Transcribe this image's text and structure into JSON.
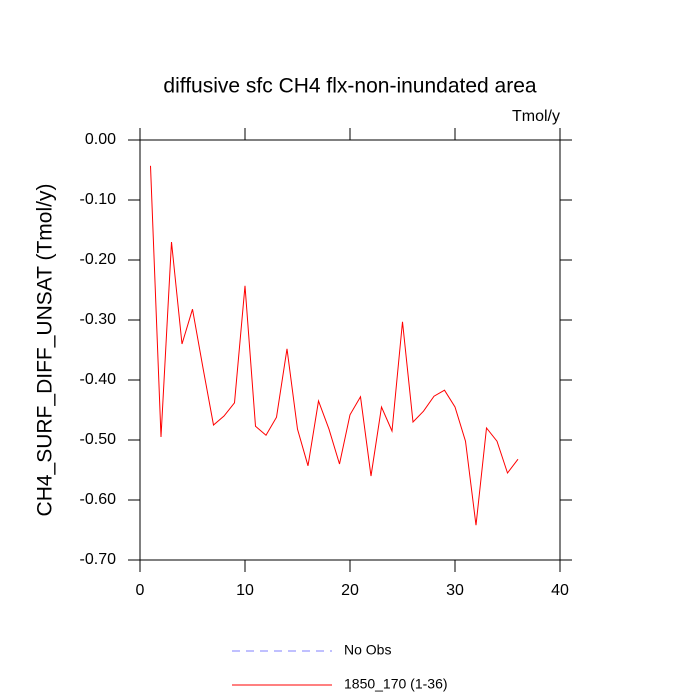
{
  "chart_data": {
    "type": "line",
    "title": "diffusive sfc CH4 flx-non-inundated area",
    "units": "Tmol/y",
    "y_label": "CH4_SURF_DIFF_UNSAT  (Tmol/y)",
    "x": [
      1,
      2,
      3,
      4,
      5,
      6,
      7,
      8,
      9,
      10,
      11,
      12,
      13,
      14,
      15,
      16,
      17,
      18,
      19,
      20,
      21,
      22,
      23,
      24,
      25,
      26,
      27,
      28,
      29,
      30,
      31,
      32,
      33,
      34,
      35,
      36
    ],
    "series": [
      {
        "name": "No Obs",
        "color": "#8080ff",
        "dash": true,
        "values": [
          null,
          null,
          null,
          null,
          null,
          null,
          null,
          null,
          null,
          null,
          null,
          null,
          null,
          null,
          null,
          null,
          null,
          null,
          null,
          null,
          null,
          null,
          null,
          null,
          null,
          null,
          null,
          null,
          null,
          null,
          null,
          null,
          null,
          null,
          null,
          null
        ]
      },
      {
        "name": "1850_170 (1-36)",
        "color": "#ff0000",
        "dash": false,
        "values": [
          -0.043,
          -0.495,
          -0.17,
          -0.34,
          -0.282,
          -0.38,
          -0.475,
          -0.46,
          -0.438,
          -0.243,
          -0.477,
          -0.492,
          -0.462,
          -0.348,
          -0.482,
          -0.543,
          -0.435,
          -0.482,
          -0.54,
          -0.458,
          -0.428,
          -0.56,
          -0.445,
          -0.485,
          -0.303,
          -0.47,
          -0.452,
          -0.427,
          -0.417,
          -0.445,
          -0.502,
          -0.642,
          -0.48,
          -0.502,
          -0.555,
          -0.532
        ]
      }
    ],
    "xlim": [
      0,
      40
    ],
    "xticks": [
      0,
      10,
      20,
      30,
      40
    ],
    "ylim": [
      -0.7,
      0
    ],
    "yticks": [
      {
        "value": 0,
        "label": "0.00"
      },
      {
        "value": -0.1,
        "label": "-0.10"
      },
      {
        "value": -0.2,
        "label": "-0.20"
      },
      {
        "value": -0.3,
        "label": "-0.30"
      },
      {
        "value": -0.4,
        "label": "-0.40"
      },
      {
        "value": -0.5,
        "label": "-0.50"
      },
      {
        "value": -0.6,
        "label": "-0.60"
      },
      {
        "value": -0.7,
        "label": "-0.70"
      }
    ],
    "grid": false
  }
}
